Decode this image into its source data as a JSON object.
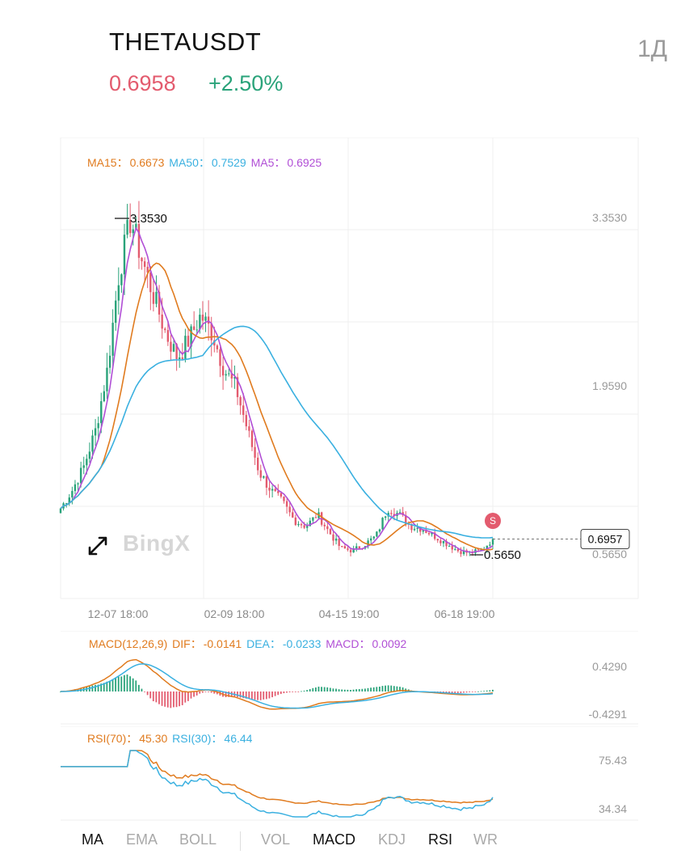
{
  "header": {
    "symbol": "THETAUSDT",
    "price": "0.6958",
    "change": "+2.50%",
    "interval": "1Д"
  },
  "colors": {
    "up": "#2aa37a",
    "down": "#e35b6e",
    "ma15": "#e07b1f",
    "ma50": "#3ab0e0",
    "ma5": "#b14fd6"
  },
  "main_legend": {
    "ma15_label": "MA15：",
    "ma15_value": "0.6673",
    "ma50_label": "MA50：",
    "ma50_value": "0.7529",
    "ma5_label": "MA5：",
    "ma5_value": "0.6925"
  },
  "macd_legend": {
    "name": "MACD(12,26,9)",
    "dif_label": "DIF：",
    "dif_value": "-0.0141",
    "dea_label": "DEA：",
    "dea_value": "-0.0233",
    "macd_label": "MACD：",
    "macd_value": "0.0092"
  },
  "rsi_legend": {
    "rsi70_label": "RSI(70)：",
    "rsi70_value": "45.30",
    "rsi30_label": "RSI(30)：",
    "rsi30_value": "46.44"
  },
  "watermark": "BingX",
  "expand_icon": "expand-icon",
  "signal_badge": "S",
  "tabs": [
    {
      "label": "MA",
      "active": true
    },
    {
      "label": "EMA",
      "active": false
    },
    {
      "label": "BOLL",
      "active": false
    },
    {
      "label": "VOL",
      "active": false
    },
    {
      "label": "MACD",
      "active": true
    },
    {
      "label": "KDJ",
      "active": false
    },
    {
      "label": "RSI",
      "active": true
    },
    {
      "label": "WR",
      "active": false
    }
  ],
  "chart_data": [
    {
      "type": "candlestick",
      "title": "THETAUSDT",
      "x_ticks": [
        "12-07 18:00",
        "02-09 18:00",
        "04-15 19:00",
        "06-18 19:00"
      ],
      "y_ticks": [
        "3.3530",
        "1.9590",
        "0.5650"
      ],
      "ylim": [
        0.4,
        3.55
      ],
      "high_marker": "3.3530",
      "low_marker": "0.5650",
      "last_price_label": "0.6957",
      "series": [
        {
          "name": "MA15",
          "value": "0.6673"
        },
        {
          "name": "MA50",
          "value": "0.7529"
        },
        {
          "name": "MA5",
          "value": "0.6925"
        }
      ],
      "close_trend": [
        0.95,
        1.1,
        1.3,
        1.6,
        2.1,
        2.9,
        3.35,
        3.0,
        2.7,
        2.4,
        2.2,
        2.35,
        2.55,
        2.4,
        2.1,
        1.95,
        1.6,
        1.25,
        1.1,
        1.0,
        0.85,
        0.8,
        0.9,
        0.75,
        0.62,
        0.6,
        0.65,
        0.72,
        0.95,
        0.9,
        0.8,
        0.78,
        0.72,
        0.66,
        0.6,
        0.58,
        0.6,
        0.6958
      ],
      "grid": true
    },
    {
      "type": "line",
      "title": "MACD(12,26,9)",
      "series": [
        {
          "name": "DIF",
          "value": "-0.0141"
        },
        {
          "name": "DEA",
          "value": "-0.0233"
        },
        {
          "name": "MACD",
          "value": "0.0092"
        }
      ],
      "y_ticks": [
        "0.4290",
        "-0.4291"
      ],
      "ylim": [
        -0.4291,
        0.429
      ]
    },
    {
      "type": "line",
      "title": "RSI",
      "series": [
        {
          "name": "RSI(70)",
          "value": "45.30"
        },
        {
          "name": "RSI(30)",
          "value": "46.44"
        }
      ],
      "y_ticks": [
        "75.43",
        "34.34"
      ],
      "ylim": [
        34.34,
        75.43
      ]
    }
  ]
}
